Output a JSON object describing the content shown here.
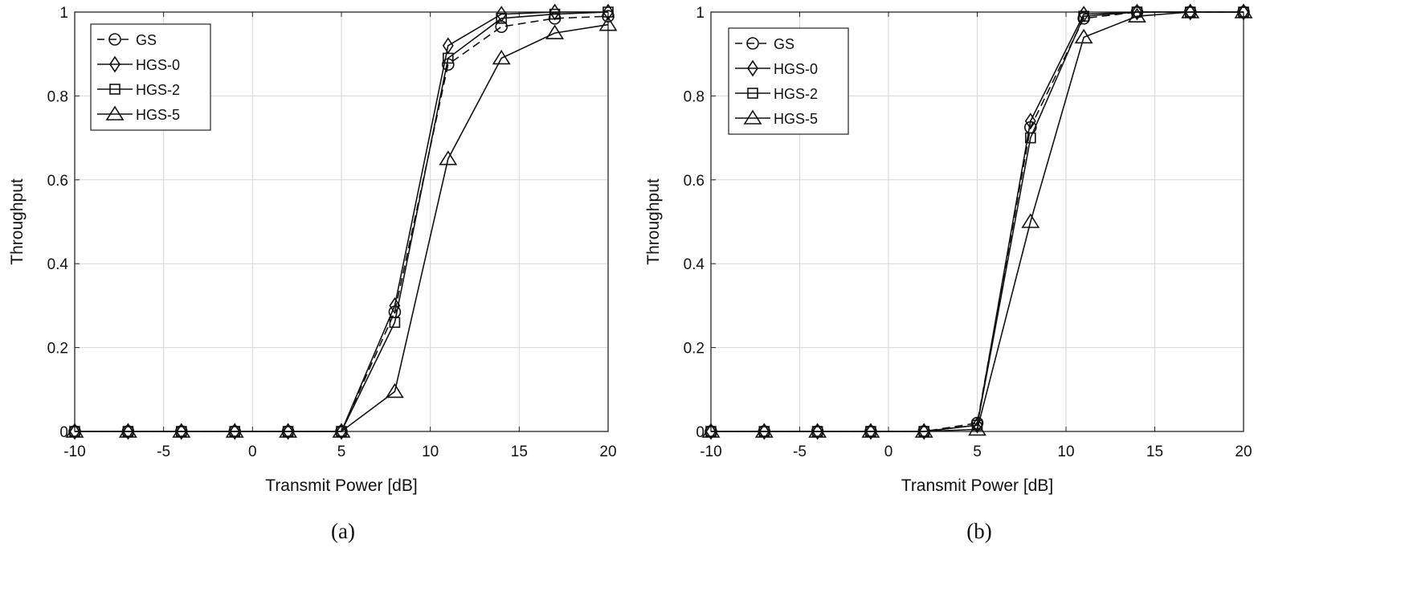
{
  "chart_data": [
    {
      "type": "line",
      "caption": "(a)",
      "xlabel": "Transmit Power [dB]",
      "ylabel": "Throughput",
      "xlim": [
        -10,
        20
      ],
      "ylim": [
        0,
        1
      ],
      "xticks": [
        -10,
        -5,
        0,
        5,
        10,
        15,
        20
      ],
      "yticks": [
        0,
        0.2,
        0.4,
        0.6,
        0.8,
        1
      ],
      "ytick_labels": [
        "0",
        "0.2",
        "0.4",
        "0.6",
        "0.8",
        "1"
      ],
      "grid": true,
      "legend_position": "top-left",
      "x": [
        -10,
        -7,
        -4,
        -1,
        2,
        5,
        8,
        11,
        14,
        17,
        20
      ],
      "series": [
        {
          "name": "GS",
          "marker": "circle",
          "dash": true,
          "values": [
            0,
            0,
            0,
            0,
            0,
            0,
            0.285,
            0.875,
            0.965,
            0.985,
            0.99
          ]
        },
        {
          "name": "HGS-0",
          "marker": "diamond",
          "dash": false,
          "values": [
            0,
            0,
            0,
            0,
            0,
            0,
            0.3,
            0.92,
            0.995,
            1.0,
            1.0
          ]
        },
        {
          "name": "HGS-2",
          "marker": "square",
          "dash": false,
          "values": [
            0,
            0,
            0,
            0,
            0,
            0,
            0.26,
            0.89,
            0.985,
            0.995,
            1.0
          ]
        },
        {
          "name": "HGS-5",
          "marker": "triangle",
          "dash": false,
          "values": [
            0,
            0,
            0,
            0,
            0,
            0,
            0.095,
            0.65,
            0.89,
            0.95,
            0.97
          ]
        }
      ]
    },
    {
      "type": "line",
      "caption": "(b)",
      "xlabel": "Transmit Power [dB]",
      "ylabel": "Throughput",
      "xlim": [
        -10,
        20
      ],
      "ylim": [
        0,
        1
      ],
      "xticks": [
        -10,
        -5,
        0,
        5,
        10,
        15,
        20
      ],
      "yticks": [
        0,
        0.2,
        0.4,
        0.6,
        0.8,
        1
      ],
      "ytick_labels": [
        "0",
        "0.2",
        "0.4",
        "0.6",
        "0.8",
        "1"
      ],
      "grid": true,
      "legend_position": "top-left",
      "x": [
        -10,
        -7,
        -4,
        -1,
        2,
        5,
        8,
        11,
        14,
        17,
        20
      ],
      "series": [
        {
          "name": "GS",
          "marker": "circle",
          "dash": true,
          "values": [
            0,
            0,
            0,
            0,
            0,
            0.02,
            0.725,
            0.985,
            1.0,
            1.0,
            1.0
          ]
        },
        {
          "name": "HGS-0",
          "marker": "diamond",
          "dash": false,
          "values": [
            0,
            0,
            0,
            0,
            0,
            0.015,
            0.74,
            0.995,
            1.0,
            1.0,
            1.0
          ]
        },
        {
          "name": "HGS-2",
          "marker": "square",
          "dash": false,
          "values": [
            0,
            0,
            0,
            0,
            0,
            0.015,
            0.7,
            0.99,
            1.0,
            1.0,
            1.0
          ]
        },
        {
          "name": "HGS-5",
          "marker": "triangle",
          "dash": false,
          "values": [
            0,
            0,
            0,
            0,
            0,
            0.005,
            0.5,
            0.94,
            0.99,
            1.0,
            1.0
          ]
        }
      ]
    }
  ]
}
